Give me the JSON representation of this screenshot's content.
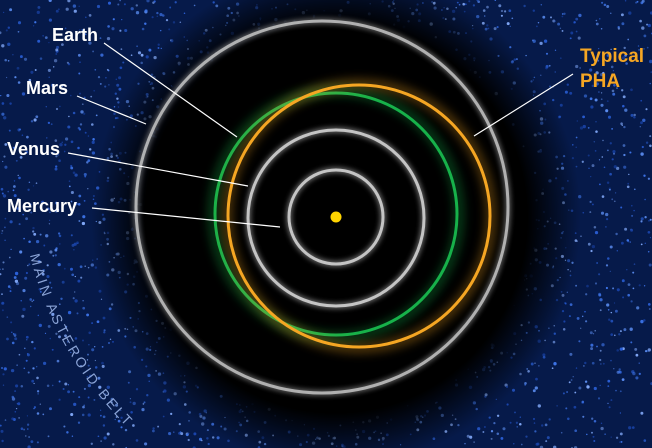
{
  "labels": {
    "earth": "Earth",
    "mars": "Mars",
    "venus": "Venus",
    "mercury": "Mercury",
    "pha_line1": "Typical",
    "pha_line2": "PHA",
    "belt": "MAIN ASTEROID BELT"
  },
  "colors": {
    "background": "#000000",
    "belt": "#1f4fb8",
    "orbit": "#c4c4c4",
    "sun": "#ffd400",
    "pha_orbit": "#f5a623",
    "green_orbit": "#17b14a"
  }
}
